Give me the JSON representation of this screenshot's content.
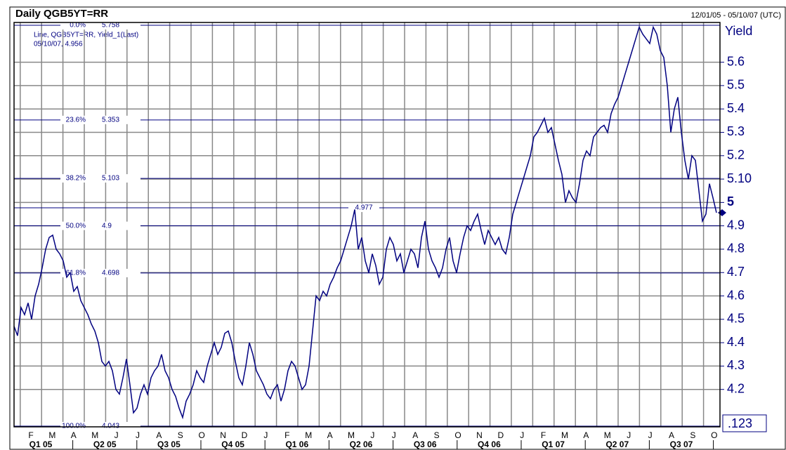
{
  "chart_data": {
    "type": "line",
    "title": "Daily QGB5YT=RR",
    "subtitle": "12/01/05 - 05/10/07 (UTC)",
    "legend_text": "Line, QGB5YT=RR, Yield_1(Last)",
    "last_text": "05/10/07, 4.956",
    "y_label": "Yield",
    "corner_label": ".123",
    "color": "#000080",
    "grid": true,
    "ylim": [
      4.04,
      5.77
    ],
    "yticks": [
      4.2,
      4.3,
      4.4,
      4.5,
      4.6,
      4.7,
      4.8,
      4.9,
      5,
      {
        "value": 5.1,
        "label": "5.10"
      },
      5.2,
      5.3,
      5.4,
      5.5,
      5.6
    ],
    "months": [
      "F",
      "M",
      "A",
      "M",
      "J",
      "J",
      "A",
      "S",
      "O",
      "N",
      "D",
      "J",
      "F",
      "M",
      "A",
      "M",
      "J",
      "J",
      "A",
      "S",
      "O",
      "N",
      "D",
      "J",
      "F",
      "M",
      "A",
      "M",
      "J",
      "J",
      "A",
      "S",
      "O"
    ],
    "quarters": [
      "Q1 05",
      "Q2 05",
      "Q3 05",
      "Q4 05",
      "Q1 06",
      "Q2 06",
      "Q3 06",
      "Q4 06",
      "Q1 07",
      "Q2 07",
      "Q3 07"
    ],
    "levels": [
      {
        "label": "0.0%",
        "value": 5.758
      },
      {
        "label": "23.6%",
        "value": 5.353
      },
      {
        "label": "38.2%",
        "value": 5.103
      },
      {
        "label": "50.0%",
        "value": 4.9
      },
      {
        "label": "61.8%",
        "value": 4.698
      },
      {
        "label": "100.0%",
        "value": 4.043
      }
    ],
    "marker_level": 4.977,
    "values": [
      4.47,
      4.43,
      4.55,
      4.52,
      4.57,
      4.5,
      4.6,
      4.65,
      4.72,
      4.8,
      4.85,
      4.86,
      4.8,
      4.78,
      4.75,
      4.68,
      4.7,
      4.62,
      4.64,
      4.58,
      4.55,
      4.52,
      4.48,
      4.45,
      4.4,
      4.32,
      4.3,
      4.32,
      4.28,
      4.2,
      4.18,
      4.25,
      4.33,
      4.22,
      4.1,
      4.12,
      4.18,
      4.22,
      4.18,
      4.25,
      4.28,
      4.3,
      4.35,
      4.28,
      4.25,
      4.2,
      4.17,
      4.12,
      4.08,
      4.15,
      4.18,
      4.22,
      4.28,
      4.25,
      4.23,
      4.3,
      4.35,
      4.4,
      4.35,
      4.38,
      4.44,
      4.45,
      4.4,
      4.32,
      4.25,
      4.22,
      4.3,
      4.4,
      4.35,
      4.28,
      4.25,
      4.22,
      4.18,
      4.16,
      4.2,
      4.22,
      4.15,
      4.2,
      4.28,
      4.32,
      4.3,
      4.25,
      4.2,
      4.22,
      4.3,
      4.45,
      4.6,
      4.58,
      4.62,
      4.6,
      4.65,
      4.68,
      4.72,
      4.75,
      4.8,
      4.85,
      4.9,
      4.97,
      4.8,
      4.85,
      4.75,
      4.7,
      4.78,
      4.73,
      4.65,
      4.68,
      4.8,
      4.85,
      4.82,
      4.75,
      4.78,
      4.7,
      4.75,
      4.8,
      4.78,
      4.72,
      4.85,
      4.92,
      4.8,
      4.75,
      4.72,
      4.68,
      4.72,
      4.8,
      4.85,
      4.75,
      4.7,
      4.78,
      4.85,
      4.9,
      4.88,
      4.92,
      4.95,
      4.88,
      4.82,
      4.88,
      4.85,
      4.82,
      4.85,
      4.8,
      4.78,
      4.85,
      4.95,
      5.0,
      5.05,
      5.1,
      5.15,
      5.2,
      5.28,
      5.3,
      5.33,
      5.36,
      5.3,
      5.32,
      5.25,
      5.18,
      5.12,
      5.0,
      5.05,
      5.02,
      5.0,
      5.08,
      5.18,
      5.22,
      5.2,
      5.28,
      5.3,
      5.32,
      5.33,
      5.3,
      5.38,
      5.42,
      5.45,
      5.5,
      5.55,
      5.6,
      5.65,
      5.7,
      5.75,
      5.72,
      5.7,
      5.68,
      5.75,
      5.72,
      5.65,
      5.62,
      5.5,
      5.3,
      5.4,
      5.45,
      5.3,
      5.18,
      5.1,
      5.2,
      5.18,
      5.05,
      4.92,
      4.95,
      5.08,
      5.02,
      4.956
    ]
  }
}
